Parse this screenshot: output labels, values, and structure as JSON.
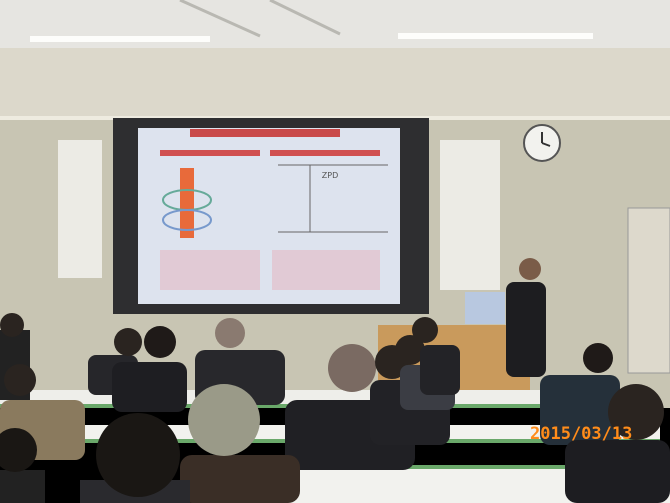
{
  "photo": {
    "date_stamp": "2015/03/13",
    "slide": {
      "diagram_label": "ZPD"
    }
  }
}
